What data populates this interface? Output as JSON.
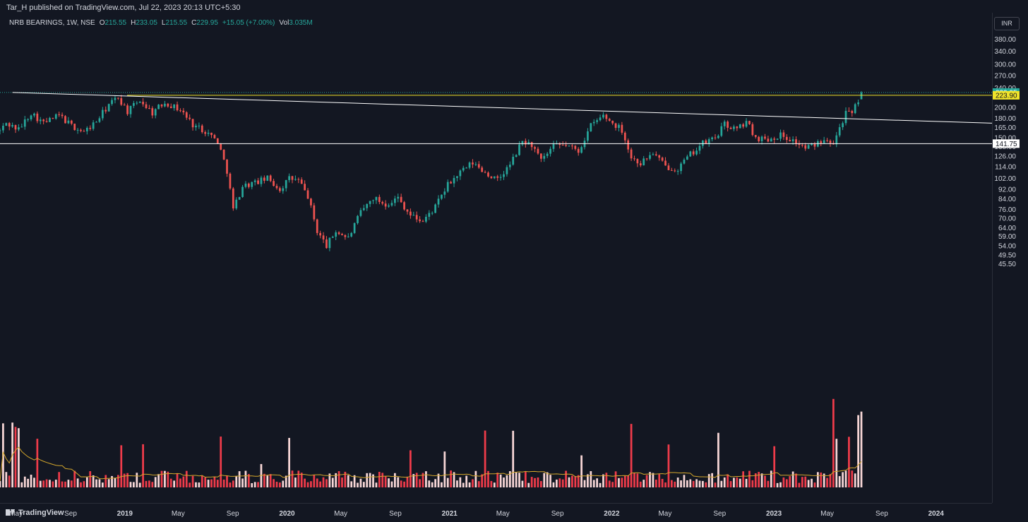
{
  "header": {
    "publisher": "Tar_H published on TradingView.com, Jul 22, 2023 20:13 UTC+5:30"
  },
  "legend": {
    "symbol": "NRB BEARINGS, 1W, NSE",
    "open_label": "O",
    "open": "215.55",
    "high_label": "H",
    "high": "233.05",
    "low_label": "L",
    "low": "215.55",
    "close_label": "C",
    "close": "229.95",
    "change": "+15.05 (+7.00%)",
    "vol_label": "Vol",
    "vol": "3.035M"
  },
  "price_axis": {
    "currency": "INR",
    "ticks": [
      "380.00",
      "340.00",
      "300.00",
      "270.00",
      "240.00",
      "200.00",
      "180.00",
      "165.00",
      "150.00",
      "138.00",
      "126.00",
      "114.00",
      "102.00",
      "92.00",
      "84.00",
      "76.00",
      "70.00",
      "64.00",
      "59.00",
      "54.00",
      "49.50",
      "45.50"
    ],
    "tick_values": [
      380,
      340,
      300,
      270,
      240,
      200,
      180,
      165,
      150,
      138,
      126,
      114,
      102,
      92,
      84,
      76,
      70,
      64,
      59,
      54,
      49.5,
      45.5
    ],
    "scale": "log"
  },
  "time_axis": {
    "ticks": [
      "May",
      "Sep",
      "2019",
      "May",
      "Sep",
      "2020",
      "May",
      "Sep",
      "2021",
      "May",
      "Sep",
      "2022",
      "May",
      "Sep",
      "2023",
      "May",
      "Sep",
      "2024"
    ],
    "tick_dates": [
      "2018-05",
      "2018-09",
      "2019-01",
      "2019-05",
      "2019-09",
      "2020-01",
      "2020-05",
      "2020-09",
      "2021-01",
      "2021-05",
      "2021-09",
      "2022-01",
      "2022-05",
      "2022-09",
      "2023-01",
      "2023-05",
      "2023-09",
      "2024-01"
    ]
  },
  "badges": {
    "current_price": "229.95",
    "resistance": "223.90",
    "support": "141.75"
  },
  "footer": {
    "brand": "TradingView"
  },
  "colors": {
    "background": "#131722",
    "up": "#26a69a",
    "down": "#ef5350",
    "volume_up": "#f8d7d7",
    "volume_down": "#ef3b4a",
    "volume_ma": "#d4a72c",
    "resistance_line": "#f0e32a",
    "support_line": "#ffffff",
    "trendline": "#ffffff"
  },
  "chart_data": {
    "type": "candlestick",
    "symbol": "NRB BEARINGS",
    "interval": "1W",
    "exchange": "NSE",
    "price_scale": "log",
    "ylim": [
      43,
      400
    ],
    "xlim": [
      "2018-03-26",
      "2024-05-06"
    ],
    "horizontal_lines": [
      {
        "name": "resistance",
        "value": 223.9
      },
      {
        "name": "support",
        "value": 141.75
      }
    ],
    "trendline": {
      "from": {
        "date": "2018-04-23",
        "price": 230
      },
      "to": {
        "date": "2024-05-06",
        "price": 172
      }
    },
    "waypoints": [
      [
        "2018-03-26",
        160
      ],
      [
        "2018-04-09",
        172
      ],
      [
        "2018-05-07",
        162
      ],
      [
        "2018-06-04",
        190
      ],
      [
        "2018-07-02",
        172
      ],
      [
        "2018-08-06",
        185
      ],
      [
        "2018-09-03",
        168
      ],
      [
        "2018-10-01",
        158
      ],
      [
        "2018-10-29",
        175
      ],
      [
        "2018-11-26",
        205
      ],
      [
        "2018-12-17",
        220
      ],
      [
        "2019-01-07",
        192
      ],
      [
        "2019-02-04",
        214
      ],
      [
        "2019-03-04",
        190
      ],
      [
        "2019-04-01",
        210
      ],
      [
        "2019-05-06",
        195
      ],
      [
        "2019-06-03",
        170
      ],
      [
        "2019-07-01",
        160
      ],
      [
        "2019-07-29",
        145
      ],
      [
        "2019-08-19",
        110
      ],
      [
        "2019-09-02",
        76
      ],
      [
        "2019-09-23",
        95
      ],
      [
        "2019-10-21",
        98
      ],
      [
        "2019-11-18",
        102
      ],
      [
        "2019-12-16",
        92
      ],
      [
        "2020-01-06",
        102
      ],
      [
        "2020-01-27",
        100
      ],
      [
        "2020-02-17",
        86
      ],
      [
        "2020-03-09",
        62
      ],
      [
        "2020-03-30",
        54
      ],
      [
        "2020-04-20",
        62
      ],
      [
        "2020-05-18",
        58
      ],
      [
        "2020-06-15",
        74
      ],
      [
        "2020-07-13",
        85
      ],
      [
        "2020-08-10",
        80
      ],
      [
        "2020-09-07",
        85
      ],
      [
        "2020-10-05",
        72
      ],
      [
        "2020-11-02",
        68
      ],
      [
        "2020-11-30",
        78
      ],
      [
        "2020-12-28",
        96
      ],
      [
        "2021-01-25",
        108
      ],
      [
        "2021-02-22",
        118
      ],
      [
        "2021-03-22",
        108
      ],
      [
        "2021-04-19",
        100
      ],
      [
        "2021-05-17",
        116
      ],
      [
        "2021-06-14",
        145
      ],
      [
        "2021-07-05",
        140
      ],
      [
        "2021-07-26",
        120
      ],
      [
        "2021-08-23",
        138
      ],
      [
        "2021-09-20",
        140
      ],
      [
        "2021-10-18",
        132
      ],
      [
        "2021-11-15",
        168
      ],
      [
        "2021-12-13",
        185
      ],
      [
        "2022-01-03",
        172
      ],
      [
        "2022-01-24",
        162
      ],
      [
        "2022-02-14",
        124
      ],
      [
        "2022-03-07",
        118
      ],
      [
        "2022-04-04",
        130
      ],
      [
        "2022-05-02",
        114
      ],
      [
        "2022-05-30",
        112
      ],
      [
        "2022-06-27",
        128
      ],
      [
        "2022-07-25",
        142
      ],
      [
        "2022-08-22",
        150
      ],
      [
        "2022-09-12",
        170
      ],
      [
        "2022-10-10",
        162
      ],
      [
        "2022-10-31",
        175
      ],
      [
        "2022-11-21",
        150
      ],
      [
        "2022-12-19",
        148
      ],
      [
        "2023-01-16",
        154
      ],
      [
        "2023-02-13",
        146
      ],
      [
        "2023-03-13",
        136
      ],
      [
        "2023-04-03",
        140
      ],
      [
        "2023-04-24",
        150
      ],
      [
        "2023-05-15",
        145
      ],
      [
        "2023-05-29",
        165
      ],
      [
        "2023-06-12",
        190
      ],
      [
        "2023-06-26",
        186
      ],
      [
        "2023-07-10",
        215.55
      ],
      [
        "2023-07-17",
        229.95
      ]
    ],
    "last_candle": {
      "date": "2023-07-17",
      "open": 215.55,
      "high": 233.05,
      "low": 215.55,
      "close": 229.95,
      "volume": "3.035M"
    }
  }
}
